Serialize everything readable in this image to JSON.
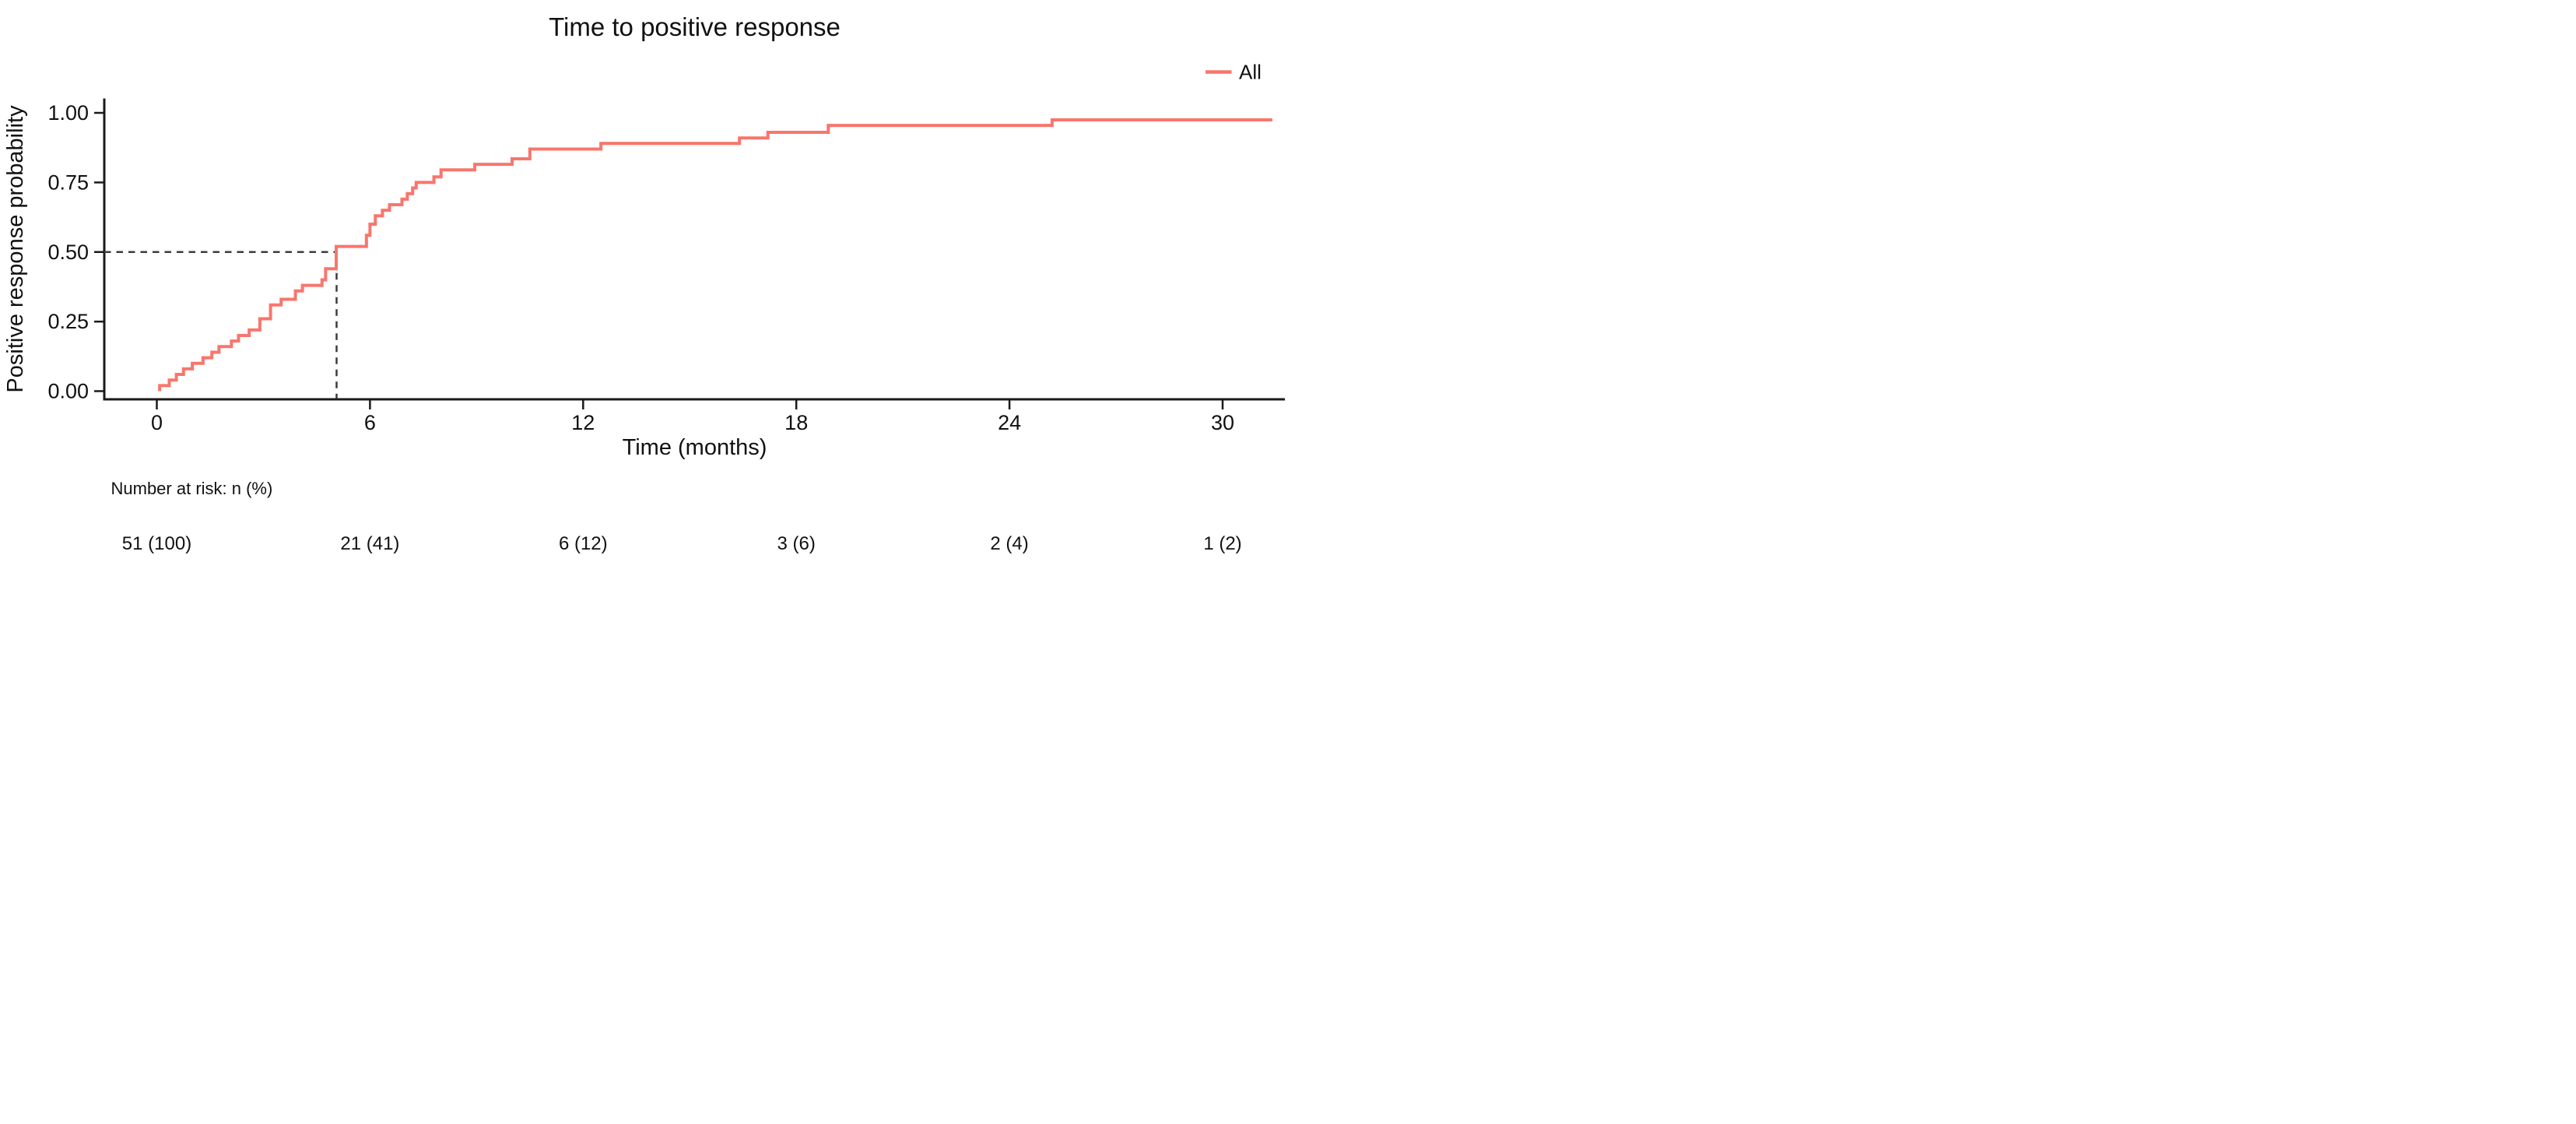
{
  "title": "Time to positive response",
  "legend": {
    "label": "All",
    "color": "#F8766D"
  },
  "axes": {
    "x_label": "Time (months)",
    "y_label": "Positive response probability",
    "x_ticks": [
      0,
      6,
      12,
      18,
      24,
      30
    ],
    "y_ticks": [
      "0.00",
      "0.25",
      "0.50",
      "0.75",
      "1.00"
    ],
    "y_tick_values": [
      0.0,
      0.25,
      0.5,
      0.75,
      1.0
    ]
  },
  "risk_table": {
    "header": "Number at risk: n (%)",
    "values": [
      "51 (100)",
      "21 (41)",
      "6 (12)",
      "3 (6)",
      "2 (4)",
      "1 (2)"
    ]
  },
  "chart_data": {
    "type": "line",
    "subtype": "kaplan-meier-cumulative-incidence-step",
    "title": "Time to positive response",
    "xlabel": "Time (months)",
    "ylabel": "Positive response probability",
    "xlim": [
      -1.5,
      31.8
    ],
    "ylim": [
      -0.03,
      1.05
    ],
    "x_tick_values": [
      0,
      6,
      12,
      18,
      24,
      30
    ],
    "y_tick_values": [
      0.0,
      0.25,
      0.5,
      0.75,
      1.0
    ],
    "grid": false,
    "legend_position": "top-right",
    "series": [
      {
        "name": "All",
        "color": "#F8766D",
        "start": [
          0.08,
          0.0
        ],
        "end_time": 31.4,
        "step_points": [
          [
            0.08,
            0.02
          ],
          [
            0.35,
            0.04
          ],
          [
            0.55,
            0.06
          ],
          [
            0.75,
            0.08
          ],
          [
            1.0,
            0.1
          ],
          [
            1.3,
            0.12
          ],
          [
            1.55,
            0.14
          ],
          [
            1.75,
            0.16
          ],
          [
            2.1,
            0.18
          ],
          [
            2.3,
            0.2
          ],
          [
            2.6,
            0.22
          ],
          [
            2.9,
            0.26
          ],
          [
            3.2,
            0.31
          ],
          [
            3.5,
            0.33
          ],
          [
            3.9,
            0.36
          ],
          [
            4.1,
            0.38
          ],
          [
            4.65,
            0.4
          ],
          [
            4.75,
            0.44
          ],
          [
            5.05,
            0.52
          ],
          [
            5.9,
            0.56
          ],
          [
            6.0,
            0.6
          ],
          [
            6.15,
            0.63
          ],
          [
            6.35,
            0.65
          ],
          [
            6.55,
            0.67
          ],
          [
            6.9,
            0.69
          ],
          [
            7.05,
            0.71
          ],
          [
            7.2,
            0.73
          ],
          [
            7.3,
            0.75
          ],
          [
            7.8,
            0.77
          ],
          [
            8.0,
            0.795
          ],
          [
            8.95,
            0.815
          ],
          [
            10.0,
            0.835
          ],
          [
            10.5,
            0.87
          ],
          [
            12.5,
            0.89
          ],
          [
            16.4,
            0.91
          ],
          [
            17.2,
            0.93
          ],
          [
            18.9,
            0.955
          ],
          [
            25.2,
            0.975
          ]
        ]
      }
    ],
    "median_annotation": {
      "time": 5.06,
      "probability": 0.5,
      "style": "dashed"
    },
    "number_at_risk": {
      "label": "Number at risk: n (%)",
      "times": [
        0,
        6,
        12,
        18,
        24,
        30
      ],
      "values": [
        "51 (100)",
        "21 (41)",
        "6 (12)",
        "3 (6)",
        "2 (4)",
        "1 (2)"
      ]
    }
  },
  "colors": {
    "curve": "#F8766D",
    "axis": "#1a1a1a",
    "dashed": "#3c3c3c",
    "background": "#ffffff"
  }
}
